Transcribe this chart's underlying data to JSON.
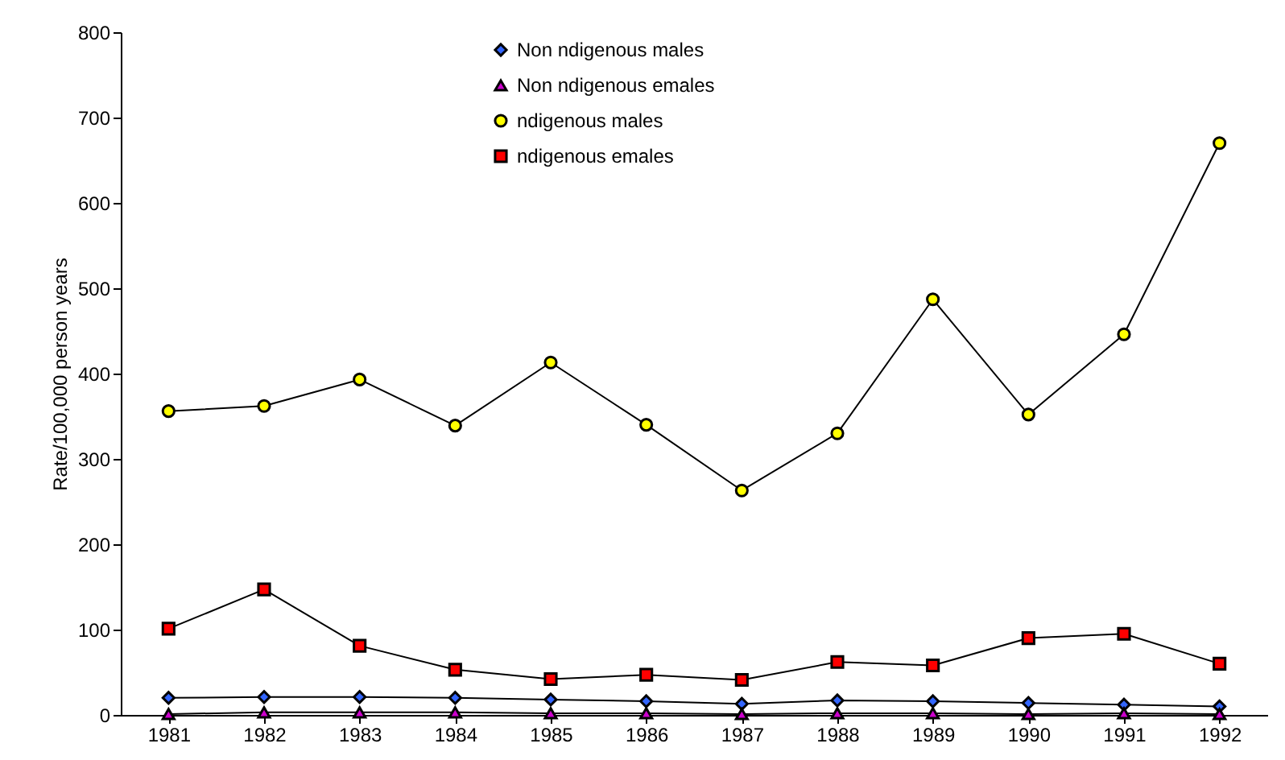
{
  "chart_data": {
    "type": "line",
    "ylabel": "Rate/100,000 person years",
    "categories": [
      "1981",
      "1982",
      "1983",
      "1984",
      "1985",
      "1986",
      "1987",
      "1988",
      "1989",
      "1990",
      "1991",
      "1992"
    ],
    "series": [
      {
        "name": "Non  ndigenous males",
        "color": "#3366ff",
        "marker": "diamond",
        "values": [
          20,
          21,
          21,
          20,
          18,
          16,
          13,
          17,
          16,
          14,
          12,
          10
        ]
      },
      {
        "name": "Non  ndigenous  emales",
        "color": "#cc00cc",
        "marker": "triangle",
        "values": [
          1,
          3,
          3,
          3,
          2,
          2,
          1,
          2,
          2,
          1,
          2,
          1
        ]
      },
      {
        "name": " ndigenous males",
        "color": "#ffff00",
        "marker": "circle",
        "values": [
          356,
          362,
          393,
          339,
          413,
          340,
          263,
          330,
          487,
          352,
          446,
          670
        ]
      },
      {
        "name": " ndigenous  emales",
        "color": "#ff0000",
        "marker": "square",
        "values": [
          101,
          147,
          81,
          53,
          42,
          47,
          41,
          62,
          58,
          90,
          95,
          60
        ]
      }
    ],
    "ylim": [
      0,
      800
    ],
    "yticks": [
      0,
      100,
      200,
      300,
      400,
      500,
      600,
      700,
      800
    ],
    "legend": "top",
    "grid": false
  }
}
